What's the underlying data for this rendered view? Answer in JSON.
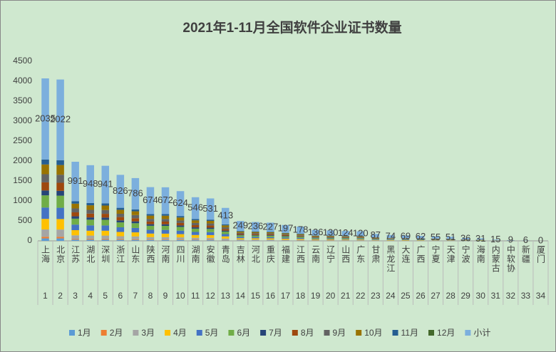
{
  "chart_data": {
    "type": "stacked_bar",
    "title": "2021年1-11月全国软件企业证书数量",
    "categories": [
      "上海",
      "北京",
      "江苏",
      "湖北",
      "深圳",
      "浙江",
      "山东",
      "陕西",
      "河南",
      "四川",
      "湖南",
      "安徽",
      "青岛",
      "吉林",
      "河北",
      "重庆",
      "福建",
      "江西",
      "云南",
      "辽宁",
      "山西",
      "广东",
      "甘肃",
      "黑龙江",
      "大连",
      "广西",
      "宁夏",
      "天津",
      "宁波",
      "海南",
      "内蒙古",
      "中软协",
      "新疆",
      "厦门"
    ],
    "ranks": [
      1,
      2,
      3,
      4,
      5,
      6,
      7,
      8,
      9,
      10,
      11,
      12,
      13,
      14,
      15,
      16,
      17,
      18,
      19,
      20,
      21,
      22,
      23,
      24,
      25,
      26,
      27,
      28,
      29,
      30,
      31,
      32,
      33,
      34
    ],
    "ylim": [
      0,
      4500
    ],
    "yticks": [
      0,
      500,
      1000,
      1500,
      2000,
      2500,
      3000,
      3500,
      4000,
      4500
    ],
    "legend": "bottom",
    "data_labels_series": 12,
    "series": [
      {
        "name": "1月",
        "color": "#5b9bd5",
        "values": [
          61,
          61,
          30,
          28,
          28,
          25,
          24,
          20,
          20,
          19,
          16,
          16,
          12,
          7,
          7,
          7,
          6,
          5,
          4,
          4,
          4,
          4,
          3,
          2,
          2,
          2,
          2,
          2,
          1,
          1,
          0,
          0,
          0,
          0
        ]
      },
      {
        "name": "2月",
        "color": "#ed7d31",
        "values": [
          41,
          40,
          20,
          19,
          19,
          17,
          16,
          13,
          13,
          12,
          11,
          11,
          8,
          5,
          5,
          5,
          4,
          4,
          3,
          3,
          2,
          2,
          2,
          1,
          1,
          1,
          1,
          1,
          1,
          1,
          0,
          0,
          0,
          0
        ]
      },
      {
        "name": "3月",
        "color": "#a5a5a5",
        "values": [
          183,
          182,
          89,
          85,
          85,
          74,
          71,
          61,
          60,
          56,
          49,
          48,
          37,
          22,
          21,
          20,
          18,
          16,
          12,
          12,
          11,
          11,
          8,
          7,
          6,
          6,
          5,
          5,
          3,
          3,
          1,
          1,
          1,
          0
        ]
      },
      {
        "name": "4月",
        "color": "#ffc000",
        "values": [
          265,
          263,
          129,
          123,
          122,
          107,
          102,
          88,
          87,
          81,
          71,
          69,
          54,
          32,
          31,
          30,
          26,
          23,
          18,
          17,
          16,
          16,
          11,
          10,
          9,
          8,
          7,
          7,
          5,
          4,
          2,
          1,
          1,
          0
        ]
      },
      {
        "name": "5月",
        "color": "#4472c4",
        "values": [
          285,
          283,
          139,
          133,
          132,
          116,
          110,
          94,
          94,
          87,
          76,
          74,
          58,
          35,
          33,
          32,
          28,
          25,
          19,
          18,
          17,
          17,
          12,
          10,
          10,
          9,
          8,
          7,
          5,
          4,
          2,
          1,
          1,
          0
        ]
      },
      {
        "name": "6月",
        "color": "#70ad47",
        "values": [
          305,
          303,
          149,
          142,
          141,
          124,
          118,
          101,
          101,
          94,
          82,
          80,
          62,
          37,
          35,
          34,
          30,
          27,
          20,
          20,
          19,
          18,
          13,
          11,
          10,
          9,
          8,
          8,
          5,
          5,
          2,
          1,
          1,
          0
        ]
      },
      {
        "name": "7月",
        "color": "#264478",
        "values": [
          122,
          121,
          59,
          57,
          56,
          50,
          47,
          40,
          40,
          37,
          33,
          32,
          25,
          15,
          14,
          14,
          12,
          11,
          8,
          8,
          7,
          7,
          5,
          4,
          4,
          4,
          3,
          3,
          2,
          2,
          1,
          1,
          0,
          0
        ]
      },
      {
        "name": "8月",
        "color": "#9e480e",
        "values": [
          204,
          202,
          99,
          95,
          94,
          83,
          79,
          67,
          67,
          62,
          55,
          53,
          41,
          25,
          24,
          23,
          20,
          18,
          14,
          13,
          12,
          12,
          9,
          7,
          7,
          6,
          6,
          5,
          4,
          3,
          2,
          1,
          1,
          0
        ]
      },
      {
        "name": "9月",
        "color": "#636363",
        "values": [
          204,
          202,
          99,
          95,
          94,
          83,
          79,
          67,
          67,
          62,
          55,
          53,
          41,
          25,
          24,
          23,
          20,
          18,
          14,
          13,
          12,
          12,
          9,
          7,
          7,
          6,
          6,
          5,
          4,
          3,
          2,
          1,
          1,
          0
        ]
      },
      {
        "name": "10月",
        "color": "#997300",
        "values": [
          244,
          243,
          119,
          114,
          113,
          99,
          94,
          81,
          81,
          75,
          66,
          64,
          50,
          30,
          28,
          27,
          24,
          21,
          16,
          16,
          15,
          14,
          10,
          9,
          8,
          7,
          7,
          6,
          4,
          4,
          2,
          1,
          0,
          0
        ]
      },
      {
        "name": "11月",
        "color": "#255e91",
        "values": [
          122,
          121,
          59,
          57,
          56,
          50,
          47,
          40,
          40,
          37,
          33,
          32,
          25,
          15,
          14,
          14,
          12,
          11,
          8,
          8,
          7,
          7,
          5,
          4,
          4,
          4,
          3,
          3,
          2,
          2,
          1,
          1,
          0,
          0
        ]
      },
      {
        "name": "12月",
        "color": "#43682b",
        "values": [
          0,
          0,
          0,
          0,
          0,
          0,
          0,
          0,
          0,
          0,
          0,
          0,
          0,
          0,
          0,
          0,
          0,
          0,
          0,
          0,
          0,
          0,
          0,
          0,
          0,
          0,
          0,
          0,
          0,
          0,
          0,
          0,
          0,
          0
        ]
      },
      {
        "name": "小计",
        "color": "#7cafdd",
        "values": [
          2035,
          2022,
          991,
          948,
          941,
          826,
          786,
          674,
          672,
          624,
          546,
          531,
          413,
          249,
          236,
          227,
          197,
          178,
          136,
          130,
          124,
          120,
          87,
          74,
          69,
          62,
          55,
          51,
          36,
          31,
          15,
          9,
          6,
          0
        ]
      }
    ]
  }
}
